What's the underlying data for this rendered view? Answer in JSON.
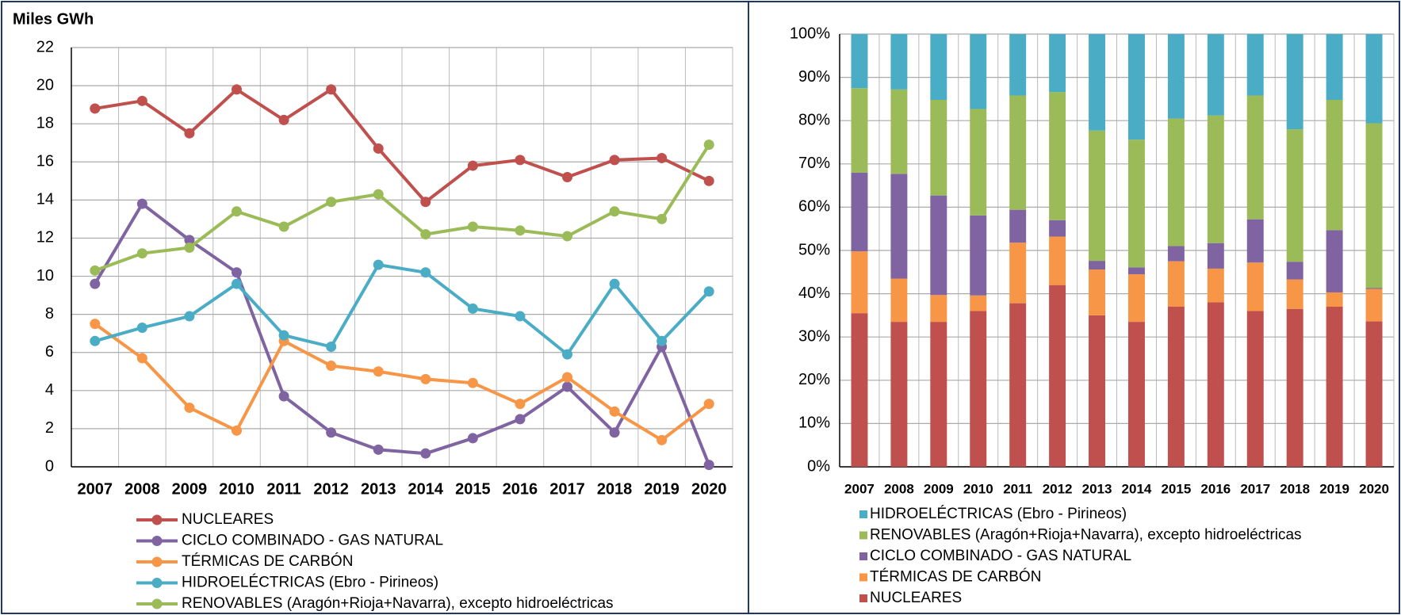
{
  "chart_data": [
    {
      "type": "line",
      "title": "Miles GWh",
      "categories": [
        "2007",
        "2008",
        "2009",
        "2010",
        "2011",
        "2012",
        "2013",
        "2014",
        "2015",
        "2016",
        "2017",
        "2018",
        "2019",
        "2020"
      ],
      "ylim": [
        0,
        22
      ],
      "yticks": [
        0,
        2,
        4,
        6,
        8,
        10,
        12,
        14,
        16,
        18,
        20,
        22
      ],
      "grid": true,
      "series": [
        {
          "name": "NUCLEARES",
          "color": "#c0504d",
          "values": [
            18.8,
            19.2,
            17.5,
            19.8,
            18.2,
            19.8,
            16.7,
            13.9,
            15.8,
            16.1,
            15.2,
            16.1,
            16.2,
            15.0
          ]
        },
        {
          "name": "CICLO COMBINADO - GAS NATURAL",
          "color": "#8064a2",
          "values": [
            9.6,
            13.8,
            11.9,
            10.2,
            3.7,
            1.8,
            0.9,
            0.7,
            1.5,
            2.5,
            4.2,
            1.8,
            6.3,
            0.1
          ]
        },
        {
          "name": "TÉRMICAS DE CARBÓN",
          "color": "#f79646",
          "values": [
            7.5,
            5.7,
            3.1,
            1.9,
            6.6,
            5.3,
            5.0,
            4.6,
            4.4,
            3.3,
            4.7,
            2.9,
            1.4,
            3.3
          ]
        },
        {
          "name": "HIDROELÉCTRICAS (Ebro - Pirineos)",
          "color": "#4bacc6",
          "values": [
            6.6,
            7.3,
            7.9,
            9.6,
            6.9,
            6.3,
            10.6,
            10.2,
            8.3,
            7.9,
            5.9,
            9.6,
            6.6,
            9.2
          ]
        },
        {
          "name": "RENOVABLES (Aragón+Rioja+Navarra), excepto hidroeléctricas",
          "color": "#9bbb59",
          "values": [
            10.3,
            11.2,
            11.5,
            13.4,
            12.6,
            13.9,
            14.3,
            12.2,
            12.6,
            12.4,
            12.1,
            13.4,
            13.0,
            16.9
          ]
        }
      ]
    },
    {
      "type": "stacked_bar",
      "categories": [
        "2007",
        "2008",
        "2009",
        "2010",
        "2011",
        "2012",
        "2013",
        "2014",
        "2015",
        "2016",
        "2017",
        "2018",
        "2019",
        "2020"
      ],
      "ylim": [
        0,
        100
      ],
      "yticks": [
        {
          "value": 0,
          "label": "0%"
        },
        {
          "value": 10,
          "label": "10%"
        },
        {
          "value": 20,
          "label": "20%"
        },
        {
          "value": 30,
          "label": "30%"
        },
        {
          "value": 40,
          "label": "40%"
        },
        {
          "value": 50,
          "label": "50%"
        },
        {
          "value": 60,
          "label": "60%"
        },
        {
          "value": 70,
          "label": "70%"
        },
        {
          "value": 80,
          "label": "80%"
        },
        {
          "value": 90,
          "label": "90%"
        },
        {
          "value": 100,
          "label": "100%"
        }
      ],
      "grid": true,
      "series": [
        {
          "name": "NUCLEARES",
          "color": "#c0504d",
          "values": [
            35.5,
            33.5,
            33.5,
            36.0,
            37.8,
            42.0,
            35.0,
            33.5,
            37.0,
            38.0,
            36.0,
            36.5,
            37.0,
            33.6
          ]
        },
        {
          "name": "TÉRMICAS DE CARBÓN",
          "color": "#f79646",
          "values": [
            14.3,
            10.0,
            6.2,
            3.6,
            14.0,
            11.2,
            10.6,
            11.0,
            10.5,
            7.8,
            11.2,
            6.8,
            3.3,
            7.5
          ]
        },
        {
          "name": "CICLO COMBINADO - GAS NATURAL",
          "color": "#8064a2",
          "values": [
            18.2,
            24.2,
            23.0,
            18.5,
            7.6,
            3.8,
            2.0,
            1.6,
            3.5,
            5.9,
            10.0,
            4.1,
            14.4,
            0.2
          ]
        },
        {
          "name": "RENOVABLES (Aragón+Rioja+Navarra), excepto hidroeléctricas",
          "color": "#9bbb59",
          "values": [
            19.5,
            19.5,
            22.1,
            24.6,
            26.4,
            29.6,
            30.1,
            29.5,
            29.5,
            29.5,
            28.6,
            30.6,
            30.1,
            38.1
          ]
        },
        {
          "name": "HIDROELÉCTRICAS (Ebro - Pirineos)",
          "color": "#4bacc6",
          "values": [
            12.5,
            12.8,
            15.2,
            17.3,
            14.2,
            13.4,
            22.3,
            24.4,
            19.5,
            18.8,
            14.2,
            22.0,
            15.2,
            20.6
          ]
        }
      ]
    }
  ]
}
